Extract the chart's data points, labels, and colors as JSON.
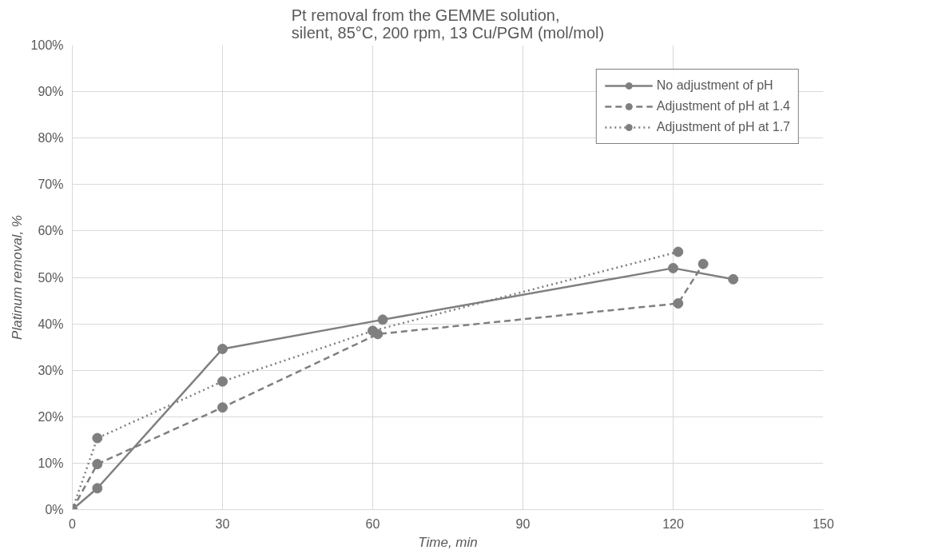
{
  "chart_data": {
    "type": "line",
    "title": "Pt removal from the GEMME solution,\nsilent, 85°C, 200 rpm, 13 Cu/PGM (mol/mol)",
    "xlabel": "Time, min",
    "ylabel": "Platinum removal, %",
    "xlim": [
      0,
      150
    ],
    "xticks": [
      0,
      30,
      60,
      90,
      120,
      150
    ],
    "ylim": [
      0,
      100
    ],
    "yticks": [
      {
        "value": 0,
        "label": "0%"
      },
      {
        "value": 10,
        "label": "10%"
      },
      {
        "value": 20,
        "label": "20%"
      },
      {
        "value": 30,
        "label": "30%"
      },
      {
        "value": 40,
        "label": "40%"
      },
      {
        "value": 50,
        "label": "50%"
      },
      {
        "value": 60,
        "label": "60%"
      },
      {
        "value": 70,
        "label": "70%"
      },
      {
        "value": 80,
        "label": "80%"
      },
      {
        "value": 90,
        "label": "90%"
      },
      {
        "value": 100,
        "label": "100%"
      }
    ],
    "grid": true,
    "legend": "top right",
    "marker": "circle",
    "series": [
      {
        "name": "No adjustment of pH",
        "color": "#7f7f7f",
        "line_style": "solid",
        "x": [
          0,
          5,
          30,
          62,
          120,
          132
        ],
        "values": [
          0,
          4.6,
          34.6,
          40.9,
          52,
          49.6
        ]
      },
      {
        "name": "Adjustment of pH at 1.4",
        "color": "#7f7f7f",
        "line_style": "dashed",
        "x": [
          0,
          5,
          30,
          61,
          121,
          126
        ],
        "values": [
          0,
          9.8,
          22,
          37.8,
          44.4,
          52.9
        ]
      },
      {
        "name": "Adjustment of pH at 1.7",
        "color": "#7f7f7f",
        "line_style": "dotted",
        "x": [
          0,
          5,
          30,
          60,
          121
        ],
        "values": [
          0,
          15.4,
          27.6,
          38.5,
          55.5
        ]
      }
    ]
  }
}
